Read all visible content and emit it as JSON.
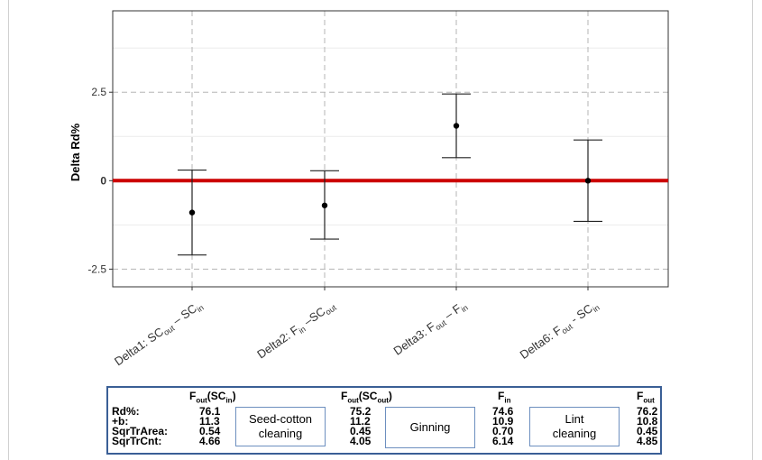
{
  "chart_data": {
    "type": "errorbar",
    "ylabel": "Delta Rd%",
    "ylim": [
      -3.0,
      4.8
    ],
    "yticks": [
      "-2.5",
      "0",
      "2.5"
    ],
    "reference_line": {
      "y": 0,
      "label": "0",
      "color": "#cc0000"
    },
    "grid": true,
    "categories": [
      {
        "label": "Delta1: SC",
        "parts": [
          {
            "t": "Delta1: SC"
          },
          {
            "t": "out",
            "sub": true
          },
          {
            "t": " – SC"
          },
          {
            "t": "in",
            "sub": true
          }
        ]
      },
      {
        "label": "Delta2: F",
        "parts": [
          {
            "t": "Delta2: F"
          },
          {
            "t": "in",
            "sub": true
          },
          {
            "t": " –SC"
          },
          {
            "t": "out",
            "sub": true
          }
        ]
      },
      {
        "label": "Delta3: F",
        "parts": [
          {
            "t": "Delta3: F"
          },
          {
            "t": "out",
            "sub": true
          },
          {
            "t": " – F"
          },
          {
            "t": "in",
            "sub": true
          }
        ]
      },
      {
        "label": "Delta6: F",
        "parts": [
          {
            "t": "Delta6: F"
          },
          {
            "t": "out",
            "sub": true
          },
          {
            "t": " - SC"
          },
          {
            "t": "in",
            "sub": true
          }
        ]
      }
    ],
    "estimates": [
      -0.9,
      -0.7,
      1.55,
      0.0
    ],
    "lower": [
      -2.1,
      -1.65,
      0.65,
      -1.15
    ],
    "upper": [
      0.3,
      0.28,
      2.45,
      1.15
    ]
  },
  "table": {
    "row_labels": [
      "Rd%:",
      "+b:",
      "SqrTrArea:",
      "SqrTrCnt:"
    ],
    "columns": [
      {
        "main": "F",
        "sub": "out",
        "rest": "(SC",
        "sub2": "in",
        "end": ")",
        "values": [
          "76.1",
          "11.3",
          "0.54",
          "4.66"
        ]
      },
      {
        "main": "F",
        "sub": "out",
        "rest": "(SC",
        "sub2": "out",
        "end": ")",
        "values": [
          "75.2",
          "11.2",
          "0.45",
          "4.05"
        ]
      },
      {
        "main": "F",
        "sub": "in",
        "rest": "",
        "sub2": "",
        "end": "",
        "values": [
          "74.6",
          "10.9",
          "0.70",
          "6.14"
        ]
      },
      {
        "main": "F",
        "sub": "out",
        "rest": "",
        "sub2": "",
        "end": "",
        "values": [
          "76.2",
          "10.8",
          "0.45",
          "4.85"
        ]
      }
    ],
    "stages": [
      "Seed-cotton cleaning",
      "Ginning",
      "Lint cleaning"
    ]
  }
}
